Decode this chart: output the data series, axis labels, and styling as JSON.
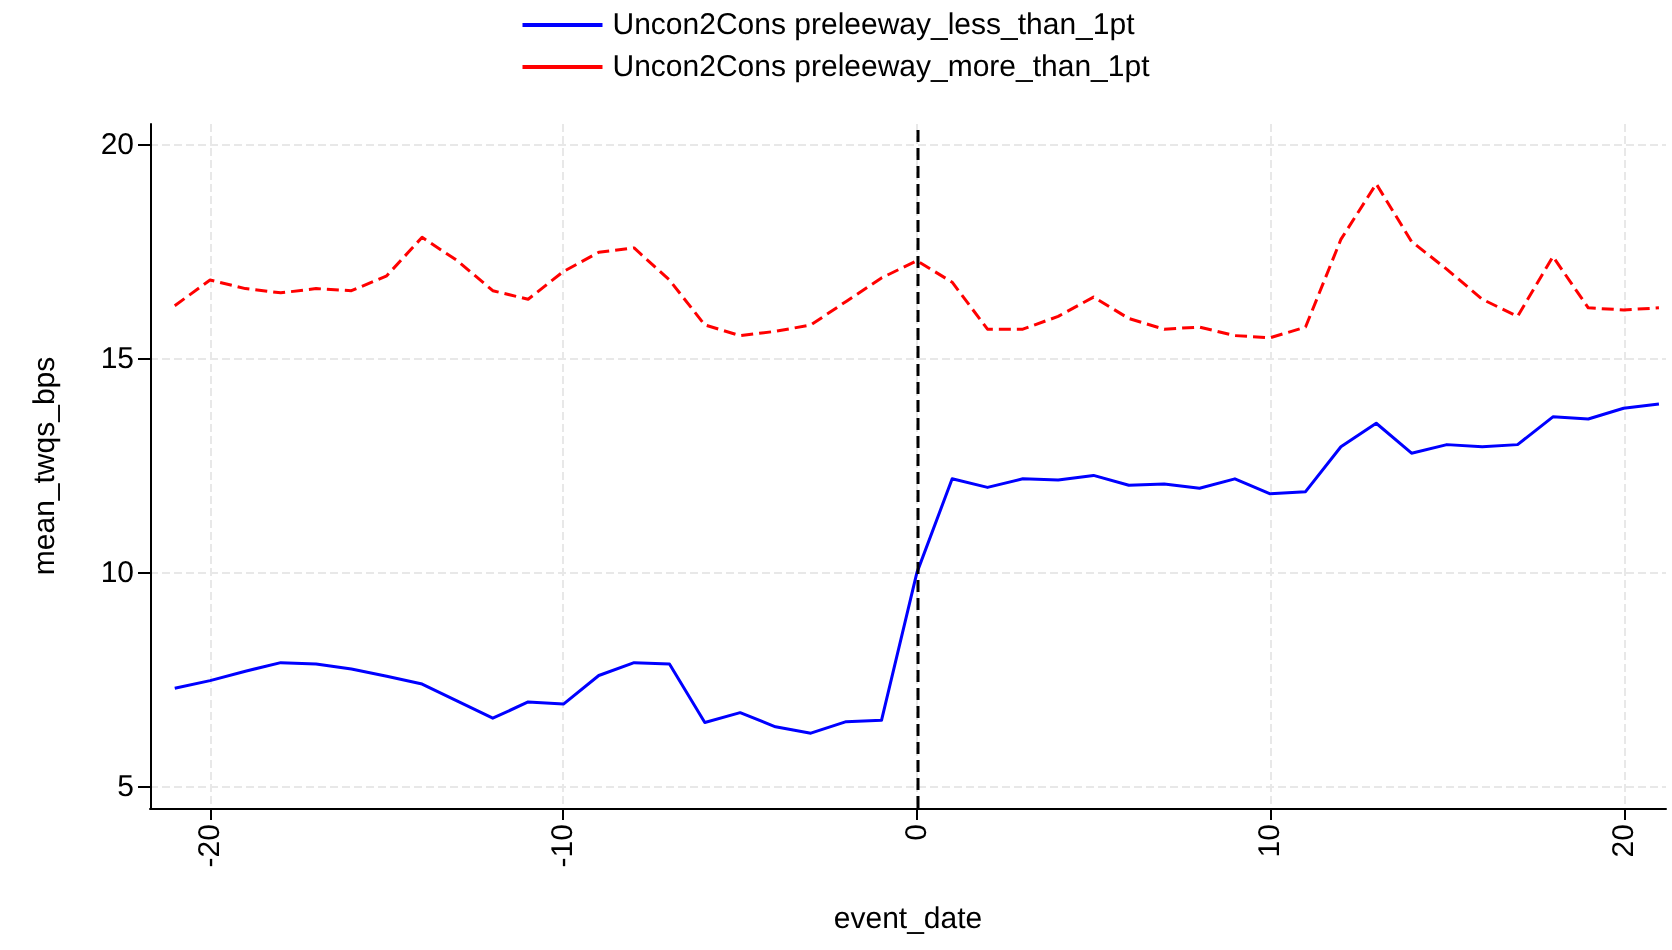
{
  "chart_data": {
    "type": "line",
    "xlabel": "event_date",
    "ylabel": "mean_twqs_bps",
    "x": [
      -21,
      -20,
      -19,
      -18,
      -17,
      -16,
      -15,
      -14,
      -13,
      -12,
      -11,
      -10,
      -9,
      -8,
      -7,
      -6,
      -5,
      -4,
      -3,
      -2,
      -1,
      0,
      1,
      2,
      3,
      4,
      5,
      6,
      7,
      8,
      9,
      10,
      11,
      12,
      13,
      14,
      15,
      16,
      17,
      18,
      19,
      20,
      21
    ],
    "series": [
      {
        "name": "Uncon2Cons preleeway_less_than_1pt",
        "color": "#0000ff",
        "line_style": "solid",
        "values": [
          7.3,
          7.48,
          7.7,
          7.9,
          7.87,
          7.75,
          7.58,
          7.4,
          7.0,
          6.6,
          6.98,
          6.93,
          7.6,
          7.9,
          7.87,
          6.5,
          6.73,
          6.4,
          6.25,
          6.52,
          6.55,
          10.0,
          12.2,
          12.0,
          12.2,
          12.17,
          12.28,
          12.05,
          12.08,
          11.98,
          12.2,
          11.85,
          11.9,
          12.95,
          13.5,
          12.8,
          13.0,
          12.95,
          13.0,
          13.65,
          13.6,
          13.85,
          13.95
        ]
      },
      {
        "name": "Uncon2Cons preleeway_more_than_1pt",
        "color": "#ff0000",
        "line_style": "dashed",
        "values": [
          16.25,
          16.85,
          16.65,
          16.55,
          16.65,
          16.6,
          16.95,
          17.85,
          17.3,
          16.6,
          16.4,
          17.05,
          17.5,
          17.6,
          16.85,
          15.8,
          15.55,
          15.65,
          15.8,
          16.35,
          16.9,
          17.3,
          16.8,
          15.7,
          15.7,
          16.0,
          16.45,
          15.95,
          15.7,
          15.75,
          15.55,
          15.5,
          15.75,
          17.8,
          19.1,
          17.75,
          17.1,
          16.4,
          16.0,
          17.4,
          16.2,
          16.15,
          16.2
        ]
      }
    ],
    "xlim": [
      -21.7,
      21.2
    ],
    "xticks": [
      -20,
      -10,
      0,
      10,
      20
    ],
    "ylim": [
      4.5,
      20.5
    ],
    "yticks": [
      5,
      10,
      15,
      20
    ],
    "ref_lines": [
      {
        "axis": "x",
        "value": 0,
        "color": "#000000",
        "line_style": "dashed"
      }
    ],
    "grid": true,
    "legend": "top",
    "marker": "none"
  }
}
